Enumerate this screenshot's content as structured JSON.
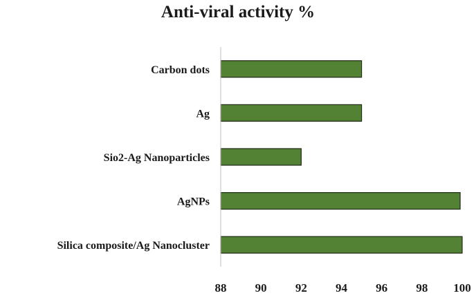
{
  "chart_data": {
    "type": "bar",
    "orientation": "horizontal",
    "title": "Anti-viral activity %",
    "categories": [
      "Carbon dots",
      "Ag",
      "Sio2-Ag Nanoparticles",
      "AgNPs",
      "Silica composite/Ag Nanocluster"
    ],
    "values": [
      95,
      95,
      92,
      99.9,
      100
    ],
    "xlabel": "",
    "ylabel": "",
    "xlim": [
      88,
      100
    ],
    "xticks": [
      "88",
      "90",
      "92",
      "94",
      "96",
      "98",
      "100"
    ],
    "grid": false,
    "legend": "none",
    "bar_color": "#548235",
    "bar_edge_color": "#1f2a14"
  }
}
